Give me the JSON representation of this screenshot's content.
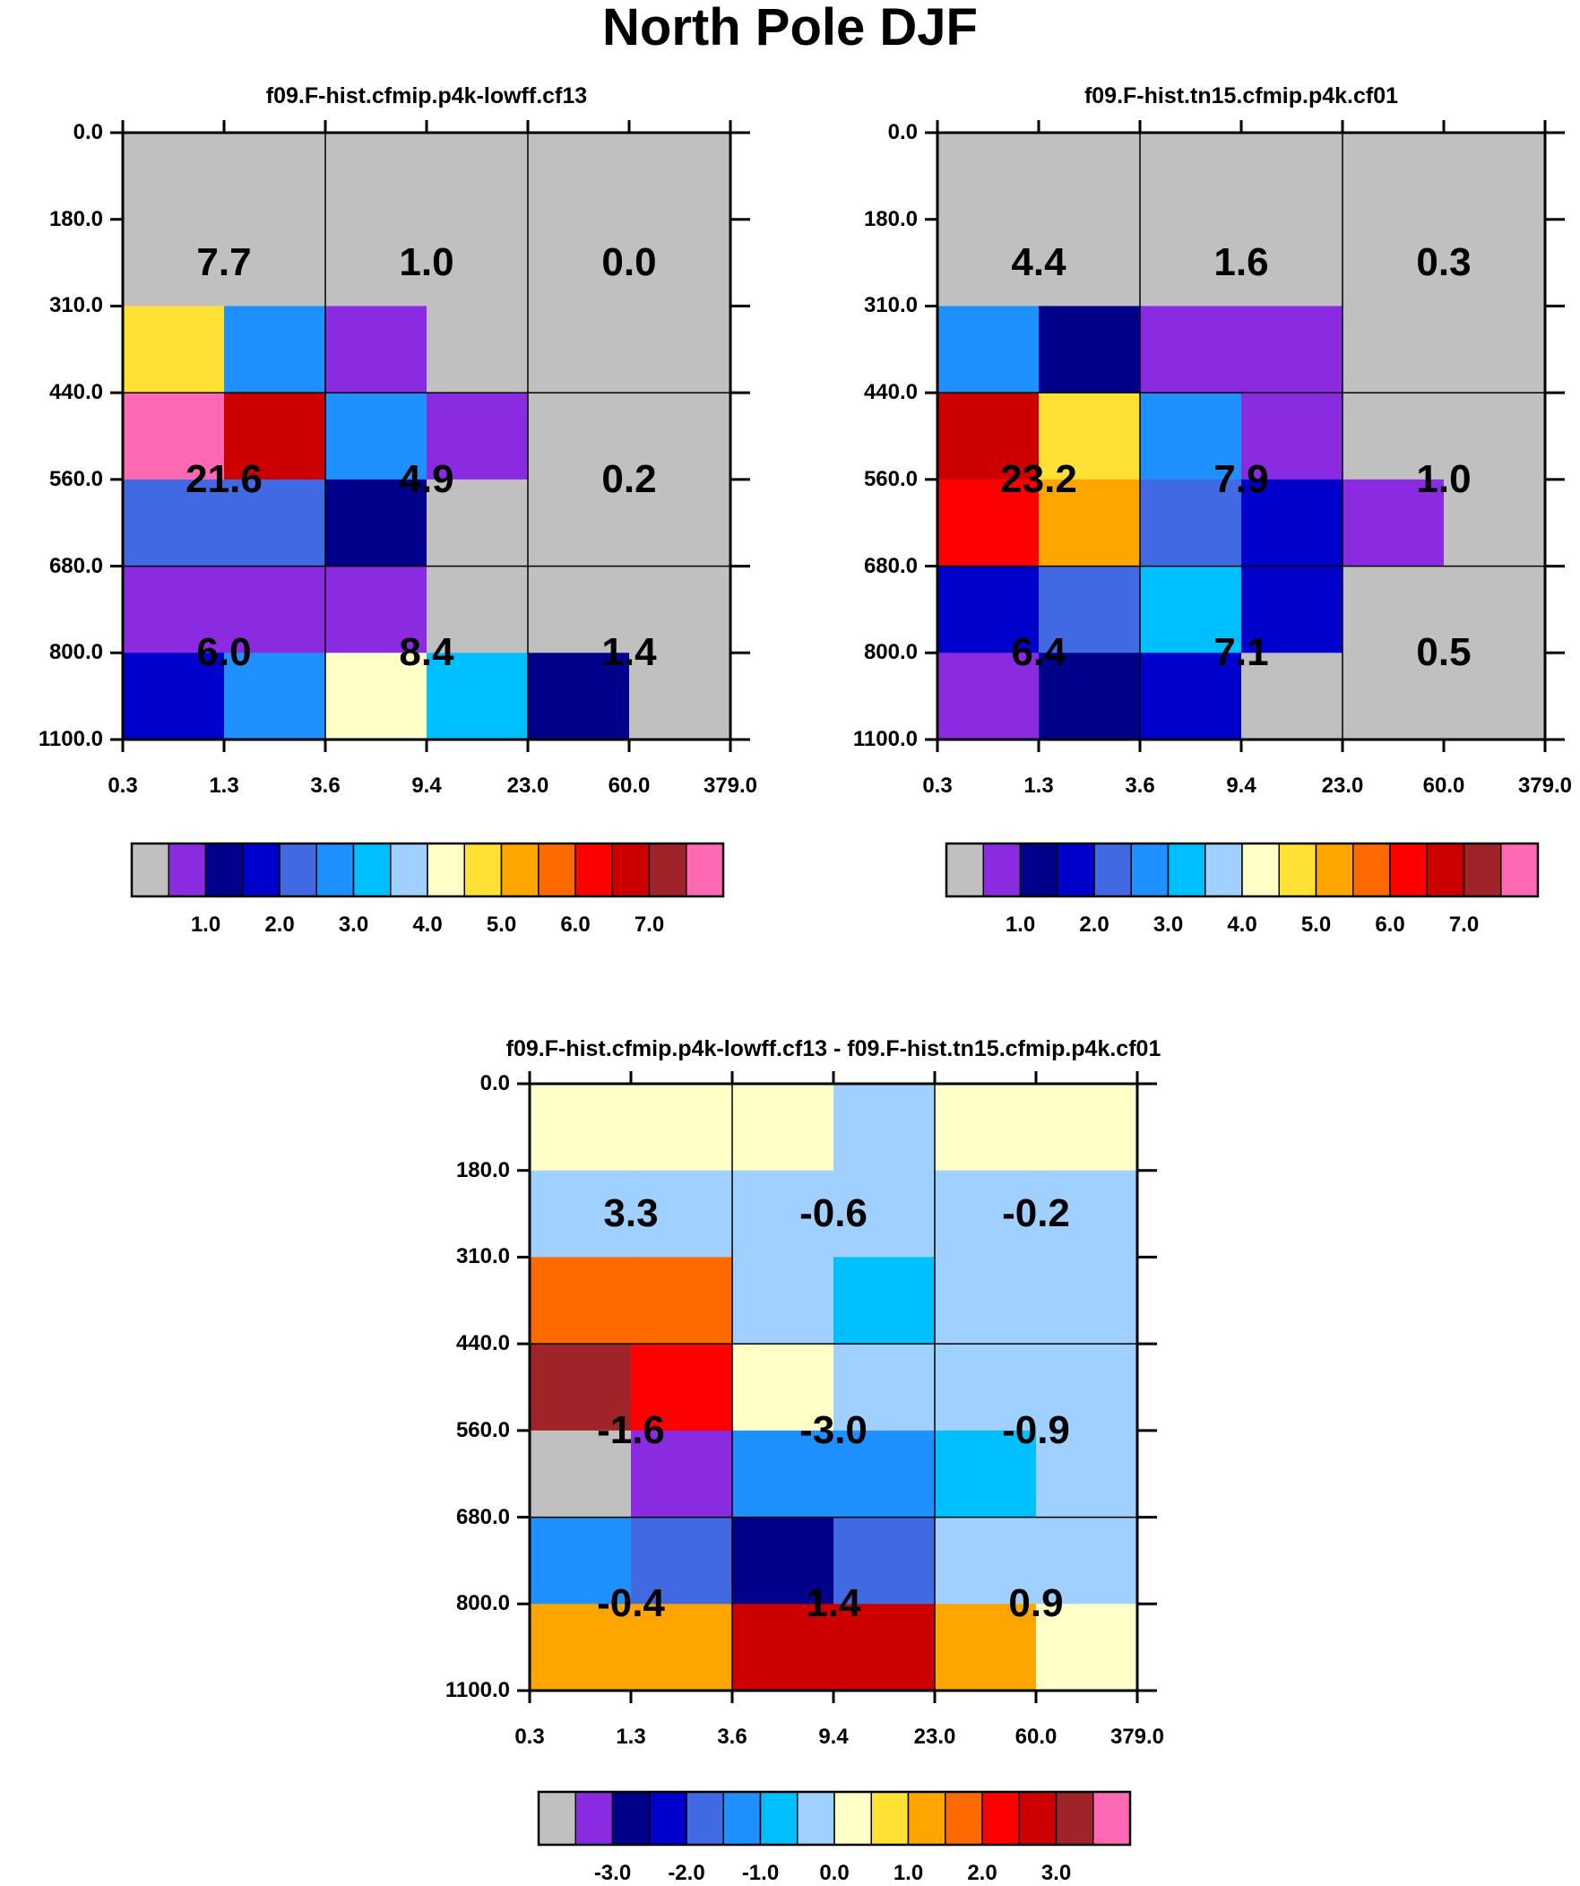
{
  "title": "North Pole DJF",
  "colors": {
    "palette": [
      "#c0c0c0",
      "#8a2be2",
      "#00008b",
      "#0000cd",
      "#4169e1",
      "#1e90ff",
      "#00bfff",
      "#a0d0ff",
      "#ffffc8",
      "#ffe135",
      "#ffa500",
      "#ff6a00",
      "#ff0000",
      "#cd0000",
      "#a0232a",
      "#ff69b4"
    ],
    "grid_line": "#000000"
  },
  "chart_data": [
    {
      "type": "heatmap",
      "title": "f09.F-hist.cfmip.p4k-lowff.cf13",
      "x_ticks": [
        "0.3",
        "1.3",
        "3.6",
        "9.4",
        "23.0",
        "60.0",
        "379.0"
      ],
      "y_ticks": [
        "0.0",
        "180.0",
        "310.0",
        "440.0",
        "560.0",
        "680.0",
        "800.0",
        "1100.0"
      ],
      "cells": [
        [
          0,
          0,
          0,
          0,
          0,
          0
        ],
        [
          0,
          0,
          0,
          0,
          0,
          0
        ],
        [
          9,
          5,
          1,
          0,
          0,
          0
        ],
        [
          15,
          13,
          5,
          1,
          0,
          0
        ],
        [
          4,
          4,
          2,
          0,
          0,
          0
        ],
        [
          1,
          1,
          1,
          0,
          0,
          0
        ],
        [
          3,
          5,
          8,
          6,
          2,
          0
        ]
      ],
      "group_values": [
        [
          "7.7",
          "1.0",
          "0.0"
        ],
        [
          "21.6",
          "4.9",
          "0.2"
        ],
        [
          "6.0",
          "8.4",
          "1.4"
        ]
      ],
      "colorbar": {
        "boxes": 16,
        "labels": [
          "1.0",
          "2.0",
          "3.0",
          "4.0",
          "5.0",
          "6.0",
          "7.0"
        ]
      }
    },
    {
      "type": "heatmap",
      "title": "f09.F-hist.tn15.cfmip.p4k.cf01",
      "x_ticks": [
        "0.3",
        "1.3",
        "3.6",
        "9.4",
        "23.0",
        "60.0",
        "379.0"
      ],
      "y_ticks": [
        "0.0",
        "180.0",
        "310.0",
        "440.0",
        "560.0",
        "680.0",
        "800.0",
        "1100.0"
      ],
      "cells": [
        [
          0,
          0,
          0,
          0,
          0,
          0
        ],
        [
          0,
          0,
          0,
          0,
          0,
          0
        ],
        [
          5,
          2,
          1,
          1,
          0,
          0
        ],
        [
          13,
          9,
          5,
          1,
          0,
          0
        ],
        [
          12,
          10,
          4,
          3,
          1,
          0
        ],
        [
          3,
          4,
          6,
          3,
          0,
          0
        ],
        [
          1,
          2,
          3,
          0,
          0,
          0
        ]
      ],
      "group_values": [
        [
          "4.4",
          "1.6",
          "0.3"
        ],
        [
          "23.2",
          "7.9",
          "1.0"
        ],
        [
          "6.4",
          "7.1",
          "0.5"
        ]
      ],
      "colorbar": {
        "boxes": 16,
        "labels": [
          "1.0",
          "2.0",
          "3.0",
          "4.0",
          "5.0",
          "6.0",
          "7.0"
        ]
      }
    },
    {
      "type": "heatmap",
      "title": "f09.F-hist.cfmip.p4k-lowff.cf13 - f09.F-hist.tn15.cfmip.p4k.cf01",
      "x_ticks": [
        "0.3",
        "1.3",
        "3.6",
        "9.4",
        "23.0",
        "60.0",
        "379.0"
      ],
      "y_ticks": [
        "0.0",
        "180.0",
        "310.0",
        "440.0",
        "560.0",
        "680.0",
        "800.0",
        "1100.0"
      ],
      "cells": [
        [
          8,
          8,
          8,
          7,
          8,
          8
        ],
        [
          7,
          7,
          7,
          7,
          7,
          7
        ],
        [
          11,
          11,
          7,
          6,
          7,
          7
        ],
        [
          14,
          12,
          8,
          7,
          7,
          7
        ],
        [
          0,
          1,
          5,
          5,
          6,
          7
        ],
        [
          5,
          4,
          2,
          4,
          7,
          7
        ],
        [
          10,
          10,
          13,
          13,
          10,
          8
        ]
      ],
      "group_values": [
        [
          "3.3",
          "-0.6",
          "-0.2"
        ],
        [
          "-1.6",
          "-3.0",
          "-0.9"
        ],
        [
          "-0.4",
          "1.4",
          "0.9"
        ]
      ],
      "colorbar": {
        "boxes": 16,
        "labels": [
          "-3.0",
          "-2.0",
          "-1.0",
          "0.0",
          "1.0",
          "2.0",
          "3.0"
        ]
      }
    }
  ]
}
